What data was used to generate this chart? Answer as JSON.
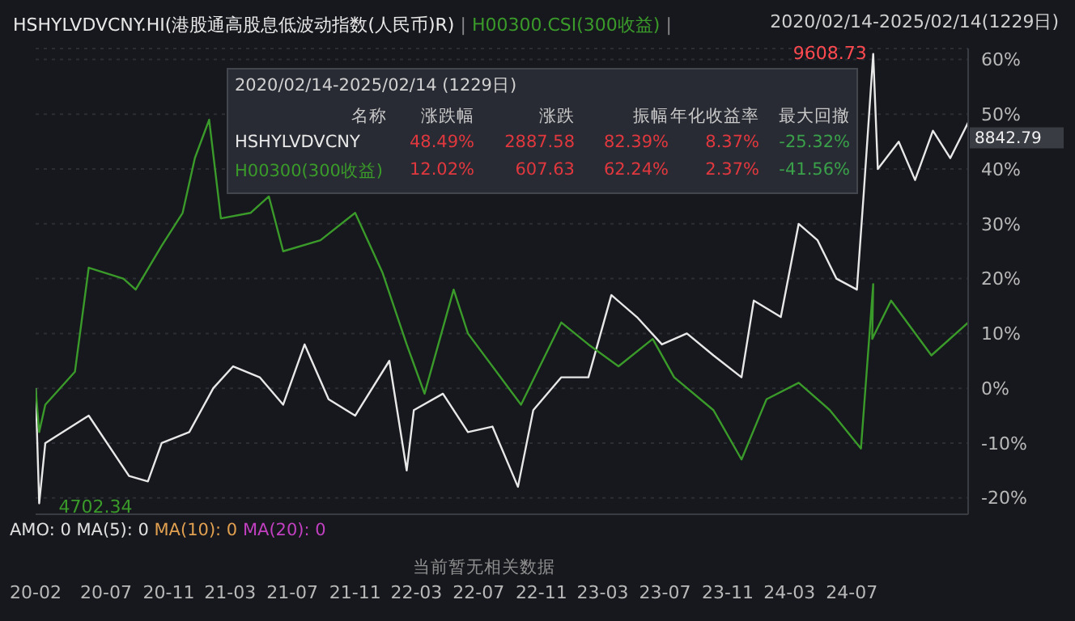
{
  "chart_data": {
    "type": "line",
    "legend": "top left",
    "grid": "y",
    "xlim": [
      "2020-02-14",
      "2025-02-14"
    ],
    "ylim": [
      -23,
      62
    ],
    "xticks": [
      {
        "value": "2020-02-14",
        "label": "20-02"
      },
      {
        "value": "2020-07",
        "label": "20-07"
      },
      {
        "value": "2020-11",
        "label": "20-11"
      },
      {
        "value": "2021-03",
        "label": "21-03"
      },
      {
        "value": "2021-07",
        "label": "21-07"
      },
      {
        "value": "2021-11",
        "label": "21-11"
      },
      {
        "value": "2022-03",
        "label": "22-03"
      },
      {
        "value": "2022-07",
        "label": "22-07"
      },
      {
        "value": "2022-11",
        "label": "22-11"
      },
      {
        "value": "2023-03",
        "label": "23-03"
      },
      {
        "value": "2023-07",
        "label": "23-07"
      },
      {
        "value": "2023-11",
        "label": "23-11"
      },
      {
        "value": "2024-03",
        "label": "24-03"
      },
      {
        "value": "2024-07",
        "label": "24-07"
      }
    ],
    "yticks": [
      {
        "value": -20,
        "label": "-20%"
      },
      {
        "value": -10,
        "label": "-10%"
      },
      {
        "value": 0,
        "label": "0%"
      },
      {
        "value": 10,
        "label": "10%"
      },
      {
        "value": 20,
        "label": "20%"
      },
      {
        "value": 30,
        "label": "30%"
      },
      {
        "value": 40,
        "label": "40%"
      },
      {
        "value": 50,
        "label": "50%"
      },
      {
        "value": 60,
        "label": "60%"
      }
    ],
    "series": [
      {
        "name": "HSHYLVDVCNY.HI(港股通高股息低波动指数(人民币)R)",
        "color": "#e8e8e8",
        "x": [
          "2020-02-14",
          "2020-02-21",
          "2020-03-04",
          "2020-05-28",
          "2020-08-15",
          "2020-09-21",
          "2020-10-18",
          "2020-12-11",
          "2021-01-27",
          "2021-03-07",
          "2021-04-28",
          "2021-06-13",
          "2021-07-25",
          "2021-09-10",
          "2021-11-01",
          "2022-01-07",
          "2022-02-10",
          "2022-02-24",
          "2022-04-22",
          "2022-06-10",
          "2022-07-28",
          "2022-09-16",
          "2022-10-16",
          "2022-12-10",
          "2023-02-01",
          "2023-03-18",
          "2023-05-07",
          "2023-06-25",
          "2023-08-13",
          "2023-10-04",
          "2023-11-28",
          "2023-12-22",
          "2024-02-13",
          "2024-03-19",
          "2024-04-25",
          "2024-06-01",
          "2024-07-11",
          "2024-07-24",
          "2024-08-12",
          "2024-08-21",
          "2024-10-01",
          "2024-11-02",
          "2024-12-07",
          "2025-01-10",
          "2025-02-14"
        ],
        "values": [
          0,
          -21,
          -10,
          -5,
          -16,
          -17,
          -10,
          -8,
          0,
          4,
          2,
          -3,
          8,
          -2,
          -5,
          5,
          -15,
          -4,
          -1,
          -8,
          -7,
          -18,
          -4,
          2,
          2,
          17,
          13,
          8,
          10,
          6,
          2,
          16,
          13,
          30,
          27,
          20,
          18,
          35,
          61,
          40,
          45,
          38,
          47,
          42,
          48.5
        ]
      },
      {
        "name": "H00300.CSI(300收益)",
        "color": "#3a9a2a",
        "x": [
          "2020-02-14",
          "2020-02-21",
          "2020-03-04",
          "2020-05-01",
          "2020-05-28",
          "2020-08-04",
          "2020-08-28",
          "2020-10-18",
          "2020-11-28",
          "2020-12-22",
          "2021-01-19",
          "2021-02-11",
          "2021-04-10",
          "2021-05-16",
          "2021-06-13",
          "2021-08-25",
          "2021-11-01",
          "2021-12-25",
          "2022-02-10",
          "2022-03-17",
          "2022-05-13",
          "2022-06-10",
          "2022-09-22",
          "2022-12-10",
          "2023-02-01",
          "2023-04-01",
          "2023-06-07",
          "2023-07-19",
          "2023-10-04",
          "2023-11-28",
          "2024-01-16",
          "2024-03-19",
          "2024-05-19",
          "2024-07-19",
          "2024-08-12",
          "2024-08-10",
          "2024-09-16",
          "2024-12-04",
          "2025-02-14"
        ],
        "values": [
          0,
          -8,
          -3,
          3,
          22,
          20,
          18,
          26,
          32,
          42,
          49,
          31,
          32,
          35,
          25,
          27,
          32,
          21,
          8,
          -1,
          18,
          10,
          -3,
          12,
          8,
          4,
          9,
          2,
          -4,
          -13,
          -2,
          1,
          -4,
          -11,
          19,
          9,
          16,
          6,
          12
        ]
      }
    ],
    "annotations": [
      "2020/02/14-2025/02/14 (1229日)",
      "名称",
      "涨跌幅",
      "涨跌",
      "振幅",
      "年化收益率",
      "最大回撤",
      "HSHYLVDVCNY",
      "48.49%",
      "2887.58",
      "82.39%",
      "8.37%",
      "-25.32%",
      "H00300(300收益)",
      "12.02%",
      "607.63",
      "62.24%",
      "2.37%",
      "-41.56%",
      "AMO: 0",
      "MA(5): 0",
      "MA(10): 0",
      "MA(20): 0",
      "当前暂无相关数据",
      "2020/02/14-2025/02/14(1229日)",
      "|",
      {
        "text": "9608.73",
        "x": "2024-08-12",
        "y": 61
      },
      {
        "text": "8842.79",
        "x": "2025-02-14",
        "y": 48.5
      },
      {
        "text": "4702.34",
        "x": "2020-02-21",
        "y": -21
      }
    ]
  }
}
